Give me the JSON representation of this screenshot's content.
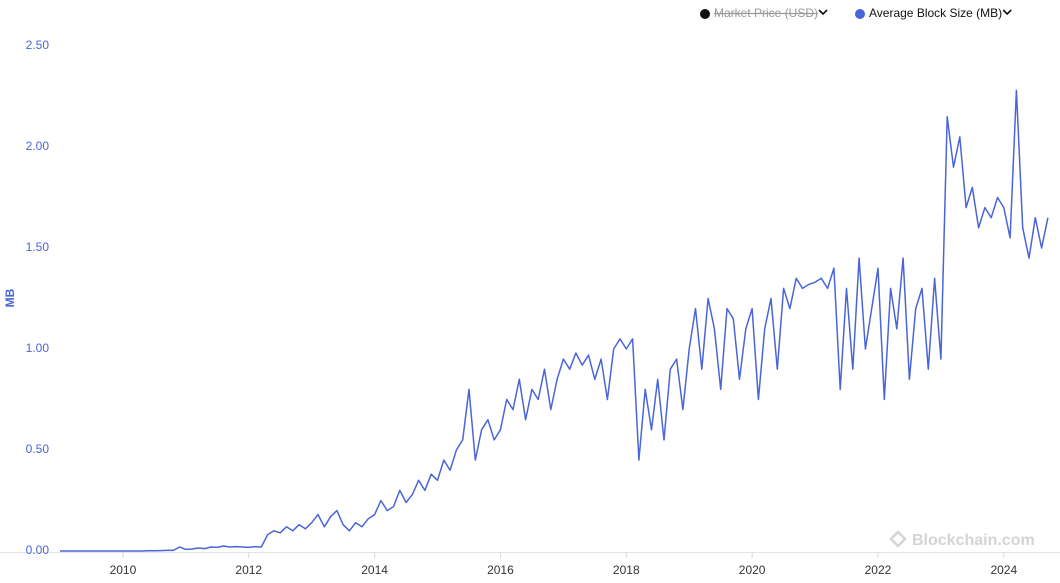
{
  "chart_data": {
    "type": "line",
    "ylabel": "MB",
    "watermark": "Blockchain.com",
    "inactive_series": [
      {
        "name": "Market Price (USD)",
        "color": "#111111"
      }
    ],
    "x": [
      2009.0,
      2009.1,
      2009.2,
      2009.3,
      2009.4,
      2009.5,
      2009.6,
      2009.7,
      2009.8,
      2009.9,
      2010.0,
      2010.1,
      2010.2,
      2010.3,
      2010.4,
      2010.5,
      2010.6,
      2010.7,
      2010.8,
      2010.9,
      2011.0,
      2011.1,
      2011.2,
      2011.3,
      2011.4,
      2011.5,
      2011.6,
      2011.7,
      2011.8,
      2011.9,
      2012.0,
      2012.1,
      2012.2,
      2012.3,
      2012.4,
      2012.5,
      2012.6,
      2012.7,
      2012.8,
      2012.9,
      2013.0,
      2013.1,
      2013.2,
      2013.3,
      2013.4,
      2013.5,
      2013.6,
      2013.7,
      2013.8,
      2013.9,
      2014.0,
      2014.1,
      2014.2,
      2014.3,
      2014.4,
      2014.5,
      2014.6,
      2014.7,
      2014.8,
      2014.9,
      2015.0,
      2015.1,
      2015.2,
      2015.3,
      2015.4,
      2015.5,
      2015.6,
      2015.7,
      2015.8,
      2015.9,
      2016.0,
      2016.1,
      2016.2,
      2016.3,
      2016.4,
      2016.5,
      2016.6,
      2016.7,
      2016.8,
      2016.9,
      2017.0,
      2017.1,
      2017.2,
      2017.3,
      2017.4,
      2017.5,
      2017.6,
      2017.7,
      2017.8,
      2017.9,
      2018.0,
      2018.1,
      2018.2,
      2018.3,
      2018.4,
      2018.5,
      2018.6,
      2018.7,
      2018.8,
      2018.9,
      2019.0,
      2019.1,
      2019.2,
      2019.3,
      2019.4,
      2019.5,
      2019.6,
      2019.7,
      2019.8,
      2019.9,
      2020.0,
      2020.1,
      2020.2,
      2020.3,
      2020.4,
      2020.5,
      2020.6,
      2020.7,
      2020.8,
      2020.9,
      2021.0,
      2021.1,
      2021.2,
      2021.3,
      2021.4,
      2021.5,
      2021.6,
      2021.7,
      2021.8,
      2021.9,
      2022.0,
      2022.1,
      2022.2,
      2022.3,
      2022.4,
      2022.5,
      2022.6,
      2022.7,
      2022.8,
      2022.9,
      2023.0,
      2023.1,
      2023.2,
      2023.3,
      2023.4,
      2023.5,
      2023.6,
      2023.7,
      2023.8,
      2023.9,
      2024.0,
      2024.1,
      2024.2,
      2024.3,
      2024.4,
      2024.5,
      2024.6,
      2024.7
    ],
    "series": [
      {
        "name": "Average Block Size (MB)",
        "color": "#4a65d8",
        "values": [
          0,
          0,
          0,
          0,
          0,
          0,
          0,
          0,
          0,
          0,
          0,
          0,
          0,
          0,
          0.001,
          0.001,
          0.002,
          0.003,
          0.003,
          0.02,
          0.008,
          0.01,
          0.015,
          0.012,
          0.02,
          0.018,
          0.025,
          0.02,
          0.022,
          0.02,
          0.018,
          0.022,
          0.02,
          0.08,
          0.1,
          0.09,
          0.12,
          0.1,
          0.13,
          0.11,
          0.14,
          0.18,
          0.12,
          0.17,
          0.2,
          0.13,
          0.1,
          0.14,
          0.12,
          0.16,
          0.18,
          0.25,
          0.2,
          0.22,
          0.3,
          0.24,
          0.28,
          0.35,
          0.3,
          0.38,
          0.35,
          0.45,
          0.4,
          0.5,
          0.55,
          0.8,
          0.45,
          0.6,
          0.65,
          0.55,
          0.6,
          0.75,
          0.7,
          0.85,
          0.65,
          0.8,
          0.75,
          0.9,
          0.7,
          0.85,
          0.95,
          0.9,
          0.98,
          0.92,
          0.97,
          0.85,
          0.95,
          0.75,
          1.0,
          1.05,
          1.0,
          1.05,
          0.45,
          0.8,
          0.6,
          0.85,
          0.55,
          0.9,
          0.95,
          0.7,
          1.0,
          1.2,
          0.9,
          1.25,
          1.1,
          0.8,
          1.2,
          1.15,
          0.85,
          1.1,
          1.2,
          0.75,
          1.1,
          1.25,
          0.9,
          1.3,
          1.2,
          1.35,
          1.3,
          1.32,
          1.33,
          1.35,
          1.3,
          1.4,
          0.8,
          1.3,
          0.9,
          1.45,
          1.0,
          1.2,
          1.4,
          0.75,
          1.3,
          1.1,
          1.45,
          0.85,
          1.2,
          1.3,
          0.9,
          1.35,
          0.95,
          2.15,
          1.9,
          2.05,
          1.7,
          1.8,
          1.6,
          1.7,
          1.65,
          1.75,
          1.7,
          1.55,
          2.28,
          1.6,
          1.45,
          1.65,
          1.5,
          1.65
        ]
      }
    ],
    "xlim": [
      2009,
      2024.75
    ],
    "xticks": [
      2010,
      2012,
      2014,
      2016,
      2018,
      2020,
      2022,
      2024
    ],
    "ylim": [
      0,
      2.5
    ],
    "yticks": [
      {
        "value": 0,
        "label": "0.00"
      },
      {
        "value": 0.5,
        "label": "0.50"
      },
      {
        "value": 1,
        "label": "1.00"
      },
      {
        "value": 1.5,
        "label": "1.50"
      },
      {
        "value": 2,
        "label": "2.00"
      },
      {
        "value": 2.5,
        "label": "2.50"
      }
    ]
  }
}
